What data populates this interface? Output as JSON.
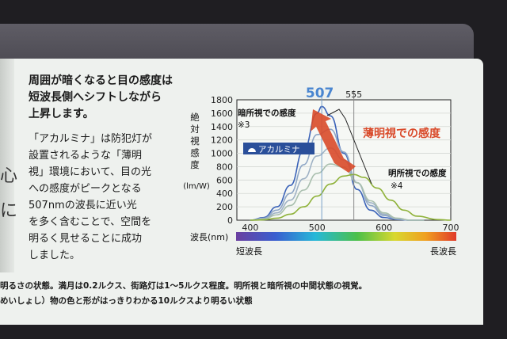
{
  "left_glyphs": [
    "心",
    "に"
  ],
  "heading": [
    "周囲が暗くなると目の感度は",
    "短波長側へシフトしながら",
    "上昇します。"
  ],
  "body_lines": [
    "「アカルミナ」は防犯灯が",
    "設置されるような「薄明",
    "視」環境において、目の光",
    "への感度がピークとなる",
    "507nmの波長に近い光",
    "を多く含むことで、空間を",
    "明るく見せることに成功",
    "しました。"
  ],
  "chart_data": {
    "type": "line",
    "xlim": [
      380,
      700
    ],
    "ylim": [
      0,
      1800
    ],
    "x_ticks": [
      "400",
      "500",
      "600",
      "700"
    ],
    "y_ticks": [
      "0",
      "200",
      "400",
      "600",
      "800",
      "1000",
      "1200",
      "1400",
      "1600",
      "1800"
    ],
    "ylabel_chars": [
      "絶",
      "対",
      "視",
      "感",
      "度"
    ],
    "ylabel_unit": "(lm/W)",
    "xlabel": "波長(nm)",
    "spectrum_left": "短波長",
    "spectrum_right": "長波長",
    "scotopic_peak_label": "507",
    "photopic_peak_label": "555",
    "scotopic_label": "暗所視での感度",
    "scotopic_note": "※3",
    "mesopic_label": "薄明視での感度",
    "photopic_label": "明所視での感度",
    "photopic_note": "※4",
    "badge_label": "アカルミナ",
    "badge_color": "#2a4f9a",
    "arrow_color": "#d94a2a",
    "series": [
      {
        "x": [
          400,
          420,
          440,
          460,
          480,
          500,
          507,
          520,
          540,
          560,
          580,
          600,
          620,
          640,
          660
        ],
        "values": [
          0,
          40,
          200,
          520,
          1050,
          1600,
          1700,
          1560,
          1000,
          460,
          150,
          40,
          10,
          0,
          0
        ],
        "color": "#3a62b8"
      },
      {
        "x": [
          400,
          420,
          440,
          460,
          480,
          500,
          520,
          540,
          560,
          580,
          600,
          620,
          640,
          660
        ],
        "values": [
          0,
          30,
          150,
          400,
          830,
          1280,
          1360,
          1020,
          560,
          220,
          70,
          15,
          0,
          0
        ],
        "color": "#8ea6c6"
      },
      {
        "x": [
          400,
          420,
          440,
          460,
          480,
          500,
          520,
          540,
          560,
          580,
          600,
          620,
          640,
          660
        ],
        "values": [
          0,
          20,
          110,
          300,
          620,
          960,
          1080,
          900,
          560,
          260,
          90,
          20,
          0,
          0
        ],
        "color": "#9fb2c5"
      },
      {
        "x": [
          400,
          420,
          440,
          460,
          480,
          500,
          520,
          540,
          560,
          580,
          600,
          620,
          640,
          660
        ],
        "values": [
          0,
          15,
          80,
          220,
          450,
          700,
          840,
          790,
          560,
          290,
          110,
          30,
          0,
          0
        ],
        "color": "#a9bfae"
      },
      {
        "x": [
          400,
          420,
          440,
          460,
          480,
          500,
          520,
          540,
          555,
          570,
          590,
          610,
          630,
          650,
          680,
          700
        ],
        "values": [
          0,
          5,
          30,
          90,
          200,
          360,
          540,
          660,
          683,
          640,
          480,
          300,
          150,
          60,
          10,
          0
        ],
        "color": "#8fb23a"
      }
    ]
  },
  "footnotes": [
    "明るさの状態。満月は0.2ルクス、街路灯は1〜5ルクス程度。明所視と暗所視の中間状態の視覚。",
    "めいしょし）物の色と形がはっきりわかる10ルクスより明るい状態"
  ]
}
